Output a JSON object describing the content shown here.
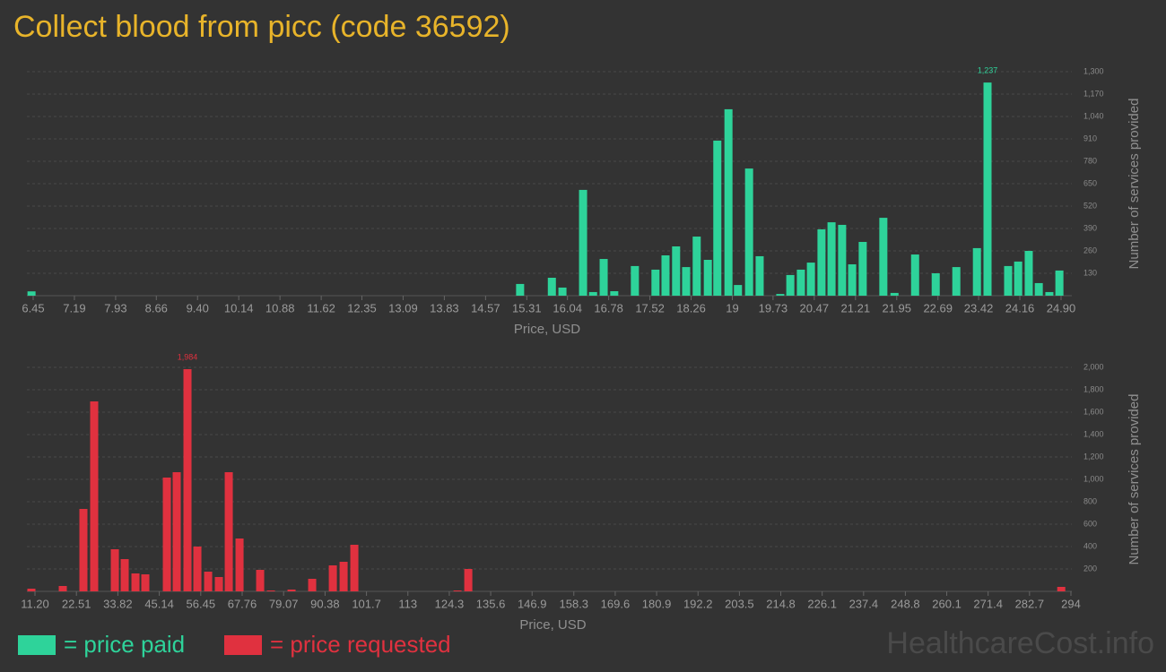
{
  "title": "Collect blood from picc (code 36592)",
  "watermark": "HealthcareCost.info",
  "chart_data": [
    {
      "type": "bar",
      "x_label": "Price, USD",
      "y_label": "Number of services provided",
      "xlim": [
        6.45,
        24.9
      ],
      "xticks": [
        6.45,
        7.19,
        7.93,
        8.66,
        {
          "value": 9.4,
          "label": "9.40"
        },
        10.14,
        10.88,
        11.62,
        12.35,
        13.09,
        13.83,
        14.57,
        15.31,
        16.04,
        16.78,
        17.52,
        18.26,
        19,
        19.73,
        20.47,
        21.21,
        21.95,
        22.69,
        23.42,
        24.16,
        {
          "value": 24.9,
          "label": "24.90"
        }
      ],
      "ylim": [
        0,
        1300
      ],
      "yticks": [
        130,
        260,
        390,
        520,
        650,
        780,
        910,
        {
          "value": 1040,
          "label": "1,040"
        },
        {
          "value": 1170,
          "label": "1,170"
        },
        {
          "value": 1300,
          "label": "1,300"
        }
      ],
      "grid": true,
      "x": [
        6.42,
        15.19,
        15.76,
        15.95,
        16.32,
        16.5,
        16.69,
        16.88,
        17.25,
        17.62,
        17.8,
        17.99,
        18.17,
        18.36,
        18.56,
        18.73,
        18.93,
        19.1,
        19.3,
        19.49,
        19.86,
        20.04,
        20.23,
        20.41,
        20.6,
        20.78,
        20.97,
        21.15,
        21.34,
        21.71,
        21.91,
        22.28,
        22.65,
        23.02,
        23.39,
        23.58,
        23.95,
        24.13,
        24.32,
        24.5,
        24.69,
        24.87
      ],
      "series": [
        {
          "name": "= price paid",
          "color": "#2ed39a",
          "values": [
            25,
            68,
            104,
            47,
            614,
            21,
            213,
            26,
            172,
            151,
            234,
            286,
            166,
            343,
            208,
            900,
            1082,
            62,
            738,
            229,
            10,
            120,
            151,
            192,
            385,
            426,
            411,
            182,
            312,
            452,
            16,
            239,
            130,
            166,
            276,
            1237,
            172,
            198,
            260,
            73,
            21,
            146
          ],
          "value_labels": [
            null,
            null,
            null,
            null,
            null,
            null,
            null,
            null,
            null,
            null,
            null,
            null,
            null,
            null,
            null,
            null,
            null,
            null,
            null,
            null,
            null,
            null,
            null,
            null,
            null,
            null,
            null,
            null,
            null,
            null,
            null,
            null,
            null,
            null,
            null,
            "1,237",
            null,
            null,
            null,
            null,
            null,
            null
          ]
        }
      ]
    },
    {
      "type": "bar",
      "x_label": "Price, USD",
      "y_label": "Number of services provided",
      "xlim": [
        11.2,
        294
      ],
      "xticks": [
        {
          "value": 11.2,
          "label": "11.20"
        },
        22.51,
        33.82,
        45.14,
        56.45,
        67.76,
        79.07,
        90.38,
        101.7,
        113,
        124.3,
        135.6,
        146.9,
        158.3,
        169.6,
        180.9,
        192.2,
        203.5,
        214.8,
        226.1,
        237.4,
        248.8,
        260.1,
        271.4,
        282.7,
        294
      ],
      "ylim": [
        0,
        2000
      ],
      "yticks": [
        200,
        400,
        600,
        800,
        {
          "value": 1000,
          "label": "1,000"
        },
        {
          "value": 1200,
          "label": "1,200"
        },
        {
          "value": 1400,
          "label": "1,400"
        },
        {
          "value": 1600,
          "label": "1,600"
        },
        {
          "value": 1800,
          "label": "1,800"
        },
        {
          "value": 2000,
          "label": "2,000"
        }
      ],
      "grid": true,
      "x": [
        10.22,
        18.79,
        24.42,
        27.36,
        33.0,
        35.69,
        38.63,
        41.32,
        47.2,
        49.89,
        52.83,
        55.53,
        58.47,
        61.4,
        64.1,
        67.04,
        72.67,
        75.61,
        81.24,
        86.87,
        92.51,
        95.45,
        98.38,
        126.55,
        129.49,
        291.36
      ],
      "series": [
        {
          "name": "= price requested",
          "color": "#e0313f",
          "values": [
            24,
            48,
            736,
            1696,
            376,
            288,
            160,
            152,
            1016,
            1064,
            1984,
            400,
            176,
            128,
            1064,
            472,
            192,
            8,
            16,
            112,
            232,
            264,
            416,
            8,
            200,
            40
          ],
          "value_labels": [
            null,
            null,
            null,
            null,
            null,
            null,
            null,
            null,
            null,
            null,
            "1,984",
            null,
            null,
            null,
            null,
            null,
            null,
            null,
            null,
            null,
            null,
            null,
            null,
            null,
            null,
            null
          ]
        }
      ]
    }
  ]
}
